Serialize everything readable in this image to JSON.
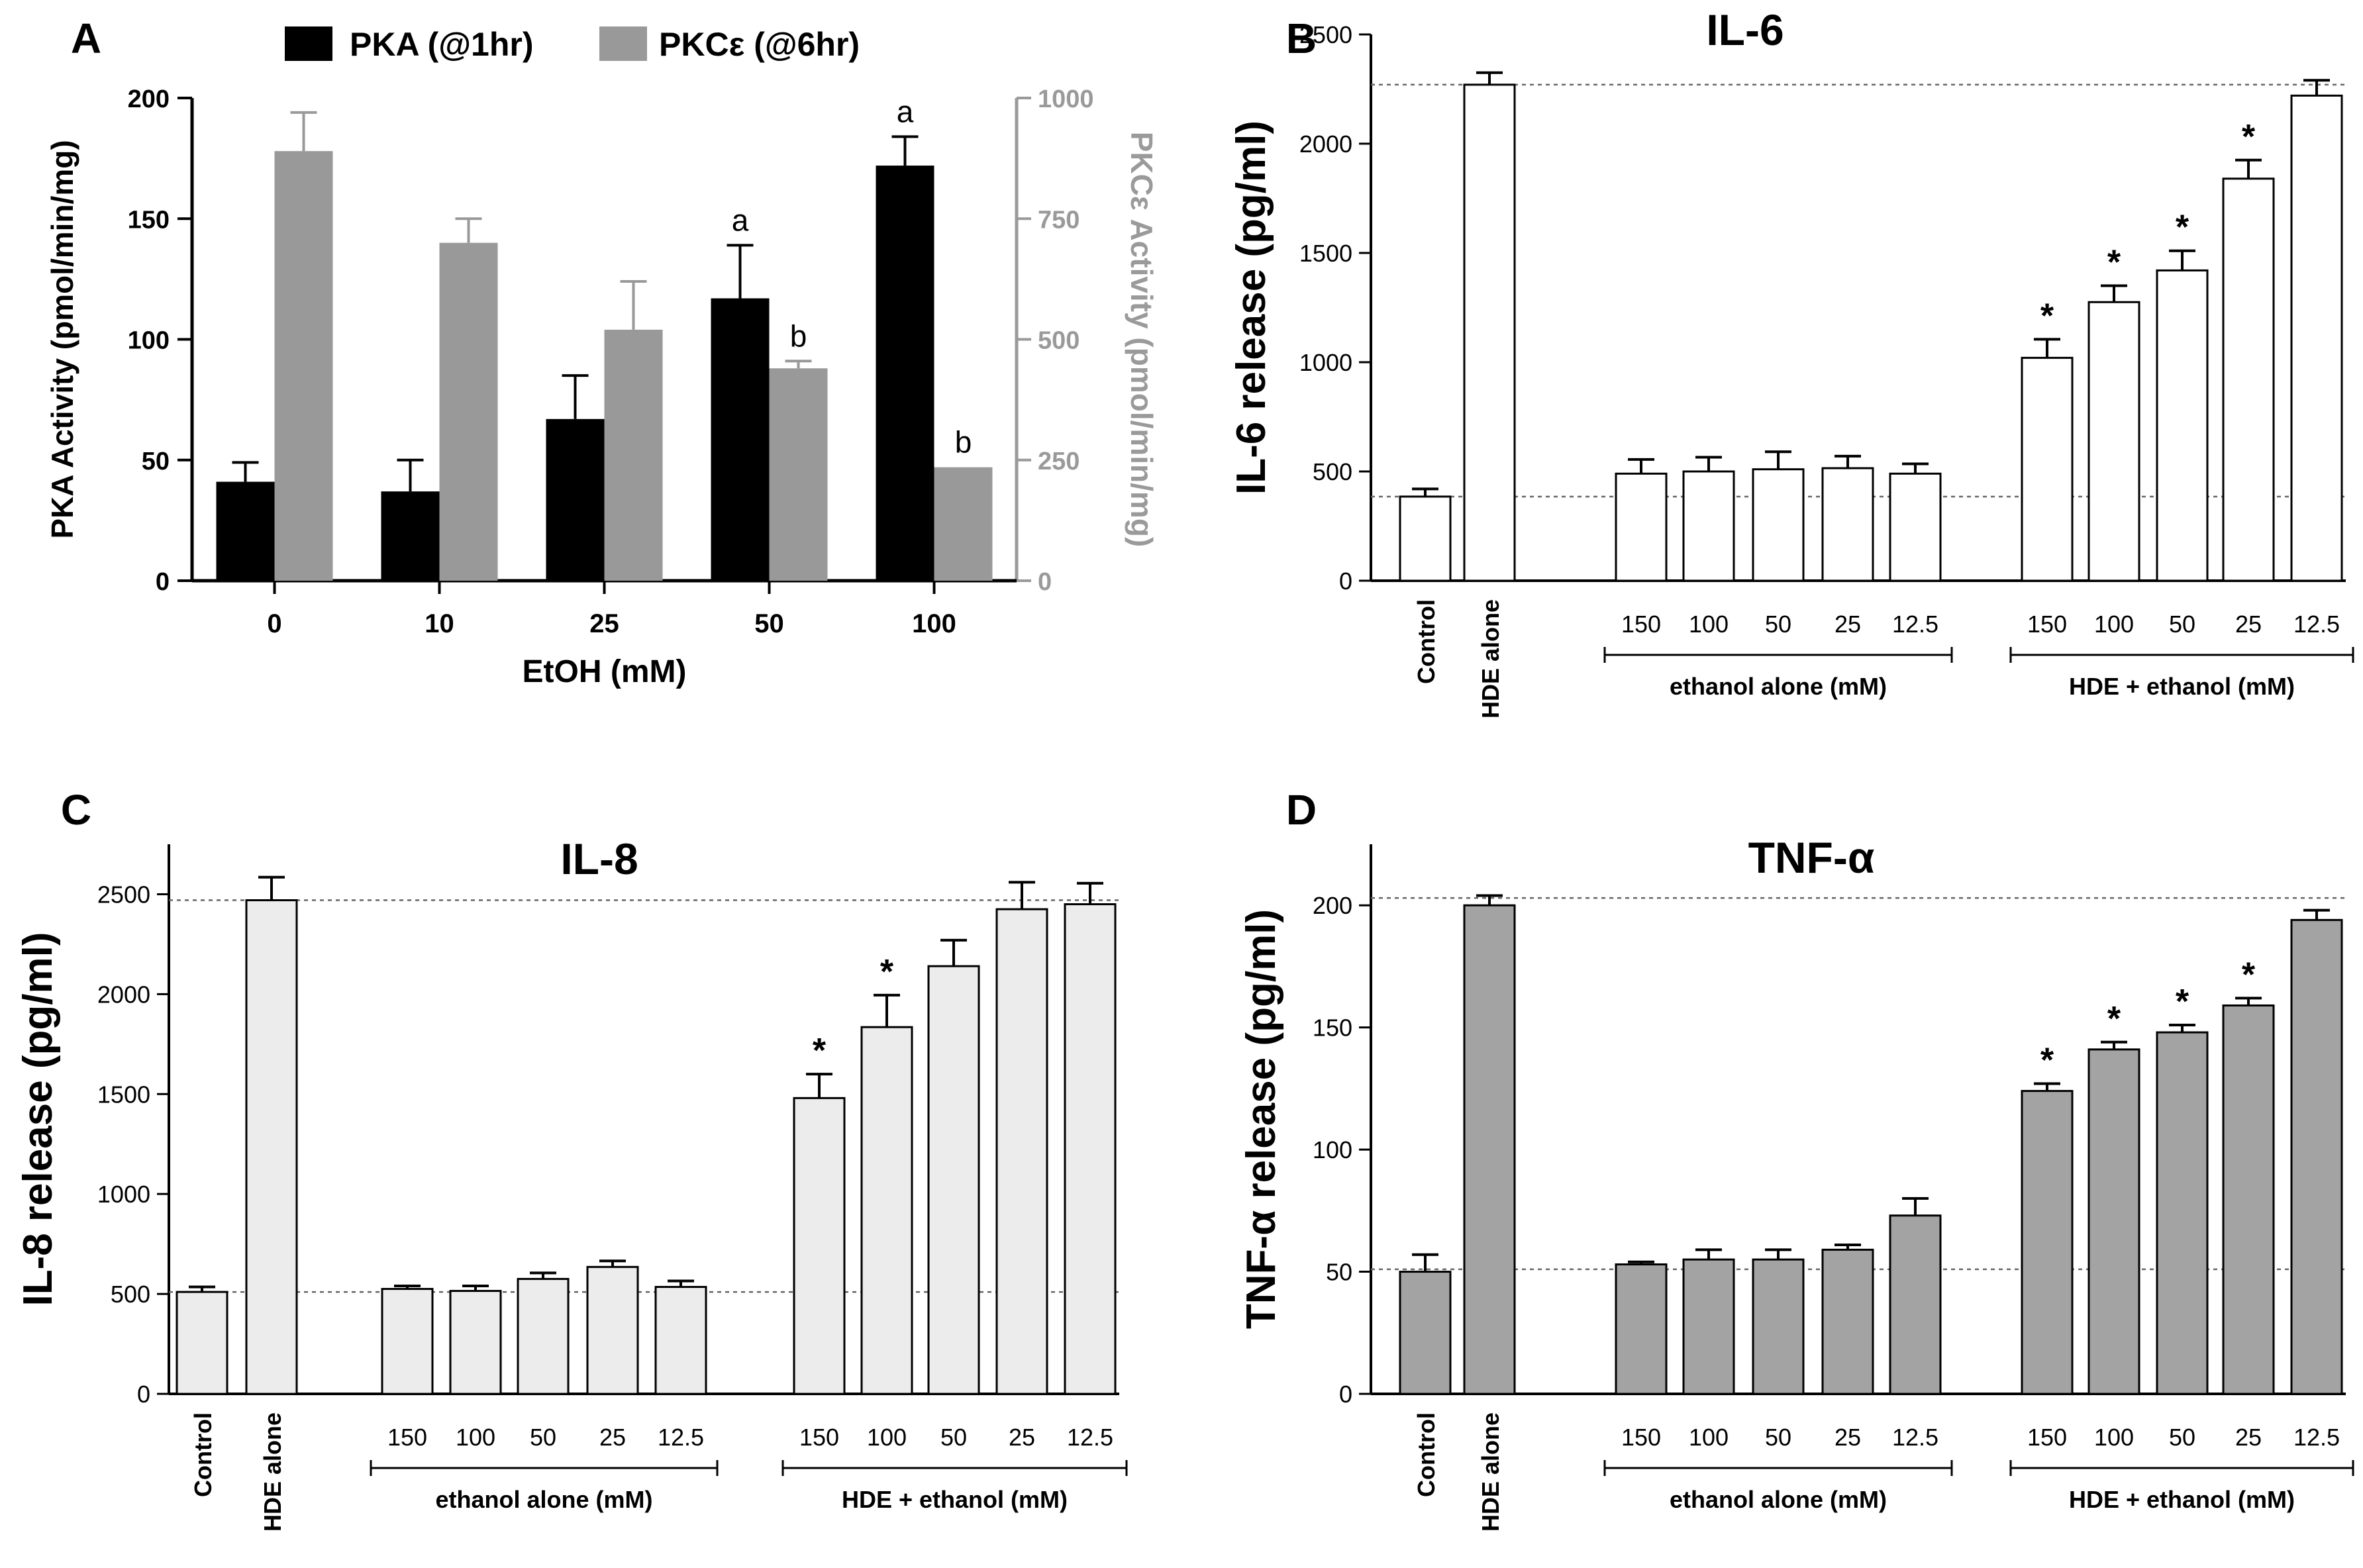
{
  "colors": {
    "black": "#000000",
    "pka_bar": "#000000",
    "pkc_bar": "#999999",
    "pkc_axis": "#9a9a9a",
    "il6_bar": "#ffffff",
    "il8_bar": "#ececec",
    "tnf_bar": "#a3a3a3",
    "ref_line": "#666666"
  },
  "chart_data": [
    {
      "panel": "A",
      "type": "bar",
      "title": "",
      "legend": [
        "PKA (@1hr)",
        "PKCε (@6hr)"
      ],
      "legend_position": "top",
      "xlabel": "EtOH (mM)",
      "ylabel": "PKA Activity (pmol/min/mg)",
      "y2label": "PKCε Activity (pmol/min/mg)",
      "categories": [
        "0",
        "10",
        "25",
        "50",
        "100"
      ],
      "ylim": [
        0,
        200
      ],
      "y2lim": [
        0,
        1000
      ],
      "yticks": [
        "0",
        "50",
        "100",
        "150",
        "200"
      ],
      "y2ticks": [
        "0",
        "250",
        "500",
        "750",
        "1000"
      ],
      "series": [
        {
          "name": "PKA (@1hr)",
          "axis": "left",
          "values": [
            41,
            37,
            67,
            117,
            172
          ],
          "errors": [
            8,
            13,
            18,
            22,
            12
          ],
          "annotations": [
            "",
            "",
            "",
            "a",
            "a"
          ]
        },
        {
          "name": "PKCε (@6hr)",
          "axis": "right",
          "values": [
            890,
            700,
            520,
            440,
            235
          ],
          "errors": [
            80,
            50,
            100,
            15,
            0
          ],
          "annotations": [
            "",
            "",
            "",
            "b",
            "b"
          ]
        }
      ]
    },
    {
      "panel": "B",
      "type": "bar",
      "title": "IL-6",
      "ylabel": "IL-6 release (pg/ml)",
      "ylim": [
        0,
        2500
      ],
      "yticks": [
        "0",
        "500",
        "1000",
        "1500",
        "2000",
        "2500"
      ],
      "categories": [
        "Control",
        "HDE alone",
        "150",
        "100",
        "50",
        "25",
        "12.5",
        "150",
        "100",
        "50",
        "25",
        "12.5"
      ],
      "values": [
        385,
        2270,
        490,
        500,
        510,
        515,
        490,
        1020,
        1275,
        1420,
        1840,
        2220
      ],
      "errors": [
        35,
        55,
        65,
        65,
        80,
        55,
        45,
        85,
        75,
        90,
        85,
        70
      ],
      "annotations": [
        "",
        "",
        "",
        "",
        "",
        "",
        "",
        "*",
        "*",
        "*",
        "*",
        ""
      ],
      "reference_lines": [
        385,
        2270
      ],
      "groups": [
        "ethanol alone (mM)",
        "HDE + ethanol (mM)"
      ]
    },
    {
      "panel": "C",
      "type": "bar",
      "title": "IL-8",
      "ylabel": "IL-8 release (pg/ml)",
      "ylim": [
        0,
        2750
      ],
      "yticks": [
        "0",
        "500",
        "1000",
        "1500",
        "2000",
        "2500"
      ],
      "categories": [
        "Control",
        "HDE alone",
        "150",
        "100",
        "50",
        "25",
        "12.5",
        "150",
        "100",
        "50",
        "25",
        "12.5"
      ],
      "values": [
        510,
        2470,
        525,
        515,
        575,
        635,
        535,
        1480,
        1835,
        2140,
        2425,
        2450
      ],
      "errors": [
        25,
        115,
        15,
        25,
        30,
        30,
        30,
        120,
        160,
        130,
        135,
        105
      ],
      "annotations": [
        "",
        "",
        "",
        "",
        "",
        "",
        "",
        "*",
        "*",
        "",
        "",
        ""
      ],
      "reference_lines": [
        510,
        2470
      ],
      "groups": [
        "ethanol alone (mM)",
        "HDE + ethanol (mM)"
      ]
    },
    {
      "panel": "D",
      "type": "bar",
      "title": "TNF-α",
      "ylabel": "TNF-α release (pg/ml)",
      "ylim": [
        0,
        225
      ],
      "yticks": [
        "0",
        "50",
        "100",
        "150",
        "200"
      ],
      "categories": [
        "Control",
        "HDE alone",
        "150",
        "100",
        "50",
        "25",
        "12.5",
        "150",
        "100",
        "50",
        "25",
        "12.5"
      ],
      "values": [
        50,
        200,
        53,
        55,
        55,
        59,
        73,
        124,
        141,
        148,
        159,
        194
      ],
      "errors": [
        7,
        4,
        1,
        4,
        4,
        2,
        7,
        3,
        3,
        3,
        3,
        4
      ],
      "annotations": [
        "",
        "",
        "",
        "",
        "",
        "",
        "",
        "*",
        "*",
        "*",
        "*",
        ""
      ],
      "reference_lines": [
        51,
        203
      ],
      "groups": [
        "ethanol alone (mM)",
        "HDE + ethanol (mM)"
      ]
    }
  ]
}
